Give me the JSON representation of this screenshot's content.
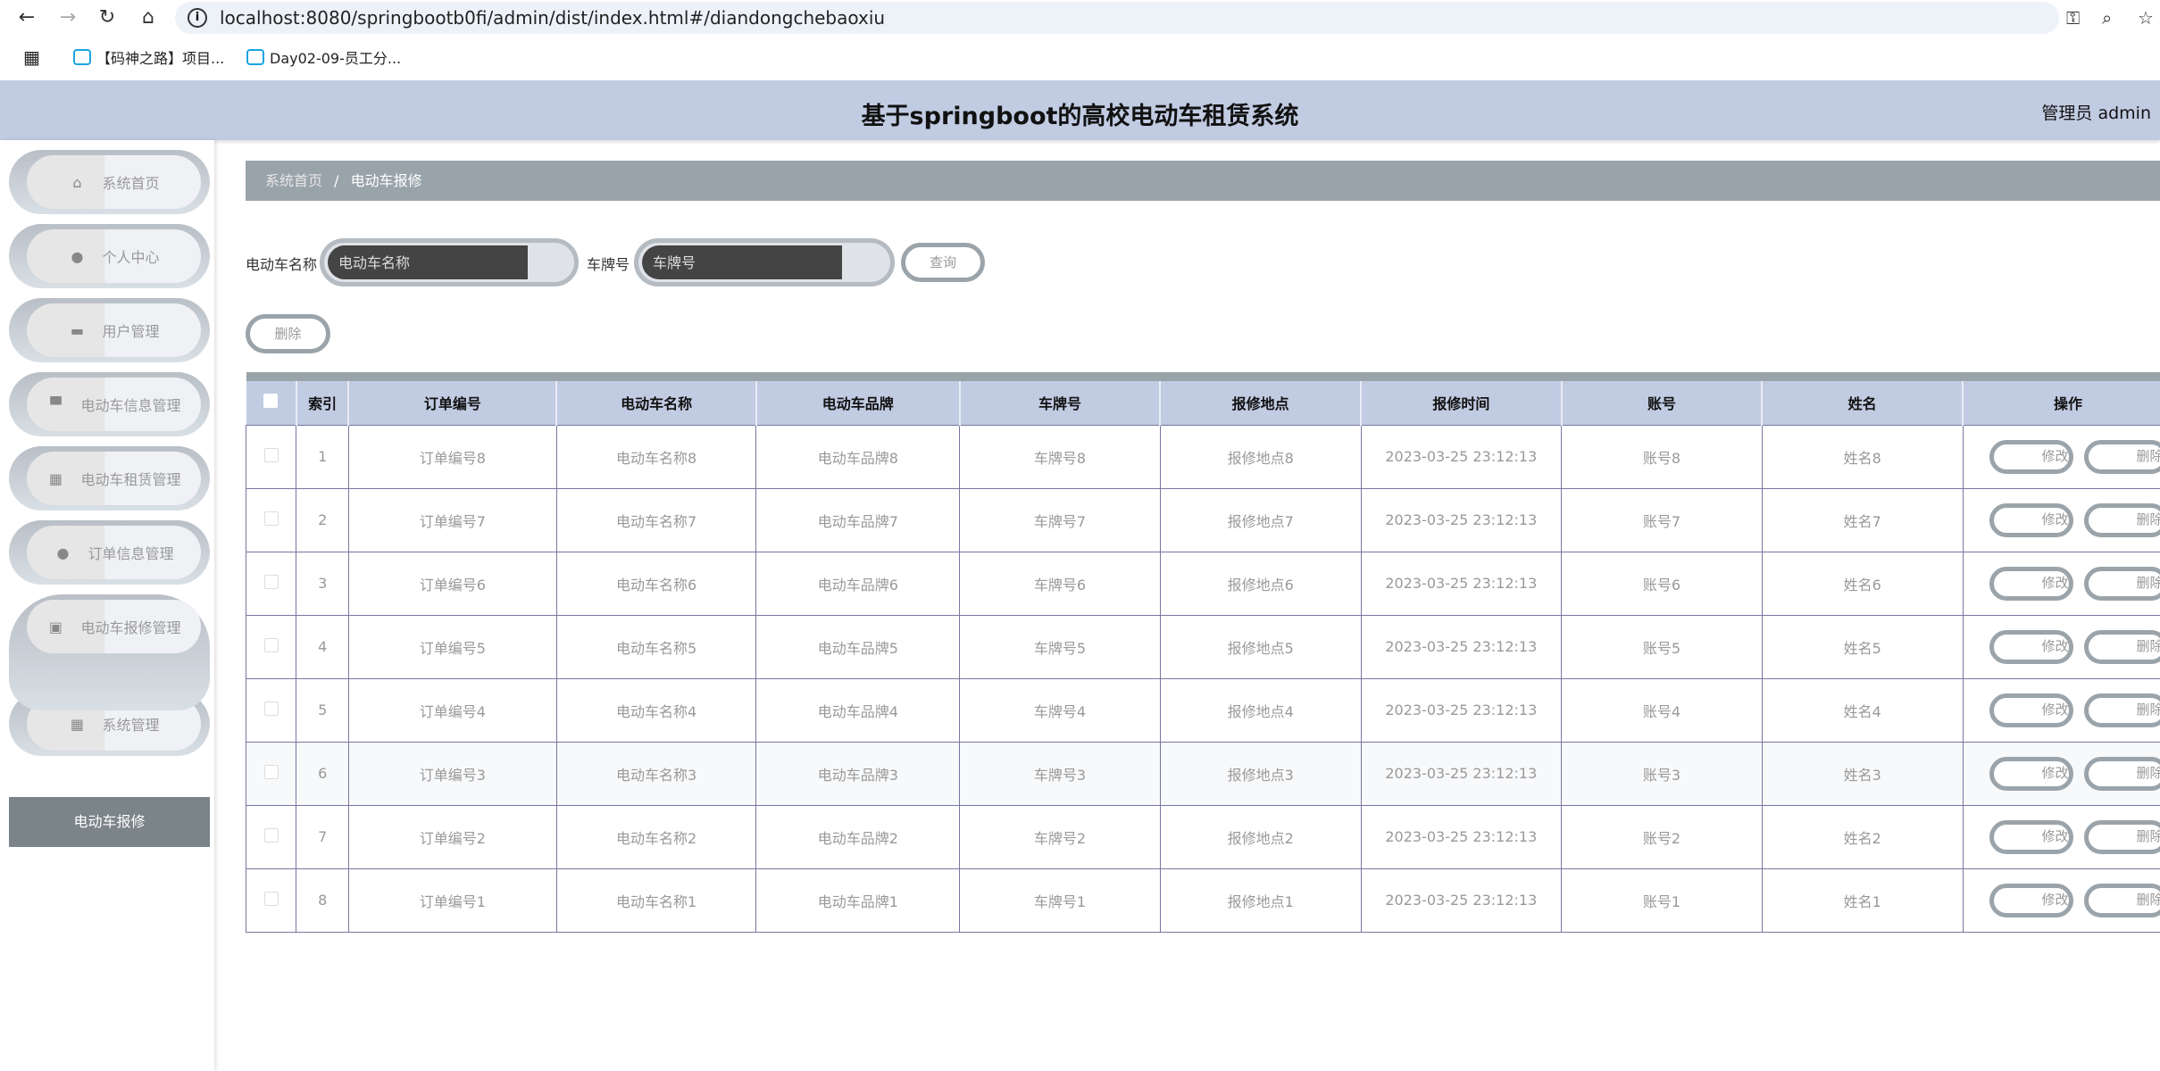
{
  "browser": {
    "url": "localhost:8080/springbootb0fi/admin/dist/index.html#/diandongchebaoxiu",
    "bookmarks": [
      "【码神之路】项目...",
      "Day02-09-员工分..."
    ]
  },
  "header": {
    "title": "基于springboot的高校电动车租赁系统",
    "user": "管理员 admin"
  },
  "sidebar": {
    "items": [
      {
        "label": "系统首页",
        "icon": "home-icon"
      },
      {
        "label": "个人中心",
        "icon": "user-icon"
      },
      {
        "label": "用户管理",
        "icon": "briefcase-icon"
      },
      {
        "label": "电动车信息管理",
        "icon": "inbox-icon"
      },
      {
        "label": "电动车租赁管理",
        "icon": "grid-icon"
      },
      {
        "label": "订单信息管理",
        "icon": "balloon-icon"
      },
      {
        "label": "电动车报修管理",
        "icon": "clipboard-check-icon"
      },
      {
        "label": "系统管理",
        "icon": "grid-icon"
      }
    ],
    "active_sub": "电动车报修"
  },
  "breadcrumb": {
    "home": "系统首页",
    "sep": "/",
    "current": "电动车报修"
  },
  "search": {
    "name_label": "电动车名称",
    "name_placeholder": "电动车名称",
    "plate_label": "车牌号",
    "plate_placeholder": "车牌号",
    "query_button": "查询"
  },
  "actions": {
    "delete_button": "删除"
  },
  "table": {
    "columns": [
      "索引",
      "订单编号",
      "电动车名称",
      "电动车品牌",
      "车牌号",
      "报修地点",
      "报修时间",
      "账号",
      "姓名",
      "操作"
    ],
    "edit_label": "修改",
    "delete_label": "删除",
    "rows": [
      [
        "1",
        "订单编号8",
        "电动车名称8",
        "电动车品牌8",
        "车牌号8",
        "报修地点8",
        "2023-03-25 23:12:13",
        "账号8",
        "姓名8"
      ],
      [
        "2",
        "订单编号7",
        "电动车名称7",
        "电动车品牌7",
        "车牌号7",
        "报修地点7",
        "2023-03-25 23:12:13",
        "账号7",
        "姓名7"
      ],
      [
        "3",
        "订单编号6",
        "电动车名称6",
        "电动车品牌6",
        "车牌号6",
        "报修地点6",
        "2023-03-25 23:12:13",
        "账号6",
        "姓名6"
      ],
      [
        "4",
        "订单编号5",
        "电动车名称5",
        "电动车品牌5",
        "车牌号5",
        "报修地点5",
        "2023-03-25 23:12:13",
        "账号5",
        "姓名5"
      ],
      [
        "5",
        "订单编号4",
        "电动车名称4",
        "电动车品牌4",
        "车牌号4",
        "报修地点4",
        "2023-03-25 23:12:13",
        "账号4",
        "姓名4"
      ],
      [
        "6",
        "订单编号3",
        "电动车名称3",
        "电动车品牌3",
        "车牌号3",
        "报修地点3",
        "2023-03-25 23:12:13",
        "账号3",
        "姓名3"
      ],
      [
        "7",
        "订单编号2",
        "电动车名称2",
        "电动车品牌2",
        "车牌号2",
        "报修地点2",
        "2023-03-25 23:12:13",
        "账号2",
        "姓名2"
      ],
      [
        "8",
        "订单编号1",
        "电动车名称1",
        "电动车品牌1",
        "车牌号1",
        "报修地点1",
        "2023-03-25 23:12:13",
        "账号1",
        "姓名1"
      ]
    ]
  }
}
